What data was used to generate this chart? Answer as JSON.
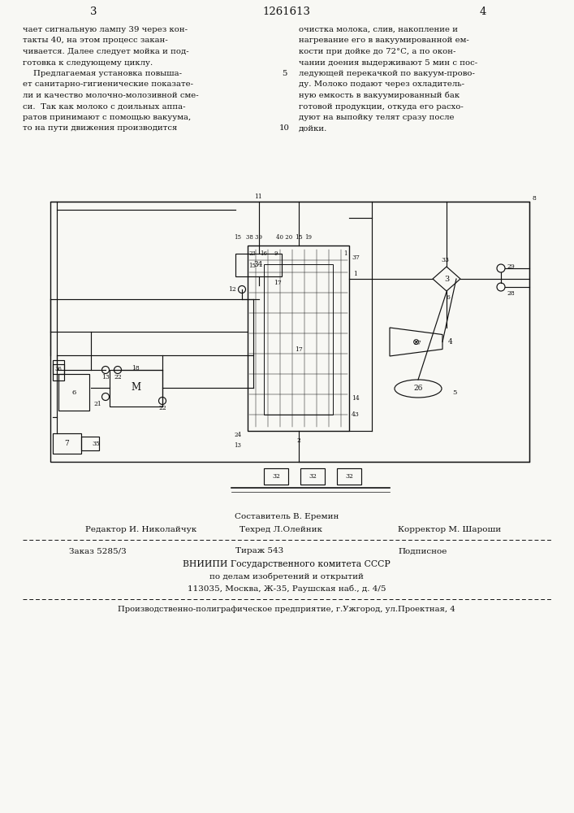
{
  "bg": "#f8f8f4",
  "tc": "#111111",
  "page_center": "1261613",
  "page_left": "3",
  "page_right": "4",
  "left_col": [
    "чает сигнальную лампу 39 через кон-",
    "такты 40, на этом процесс закан-",
    "чивается. Далее следует мойка и под-",
    "готовка к следующему циклу.",
    "    Предлагаемая установка повыша-",
    "ет санитарно-гигиенические показате-",
    "ли и качество молочно-молозивной сме-",
    "си.  Так как молоко с доильных аппа-",
    "ратов принимают с помощью вакуума,",
    "то на пути движения производится"
  ],
  "right_col": [
    "очистка молока, слив, накопление и",
    "нагревание его в вакуумированной ем-",
    "кости при дойке до 72°С, а по окон-",
    "чании доения выдерживают 5 мин с пос-",
    "ледующей перекачкой по вакуум-прово-",
    "ду. Молоко подают через охладитель-",
    "ную емкость в вакуумированный бак",
    "готовой продукции, откуда его расхо-",
    "дуют на выпойку телят сразу после",
    "дойки."
  ],
  "sostavitel": "Составитель В. Еремин",
  "editor": "Редактор И. Николайчук",
  "tekhred": "Техред Л.Олейник",
  "korrektor": "Корректор М. Шароши",
  "zakaz": "Заказ 5285/3",
  "tirazh": "Тираж 543",
  "podpisnoe": "Подписное",
  "vniishi1": "ВНИИПИ Государственного комитета СССР",
  "vniishi2": "по делам изобретений и открытий",
  "vniishi3": "113035, Москва, Ж-35, Раушская наб., д. 4/5",
  "production": "Производственно-полиграфическое предприятие, г.Ужгород, ул.Проектная, 4"
}
